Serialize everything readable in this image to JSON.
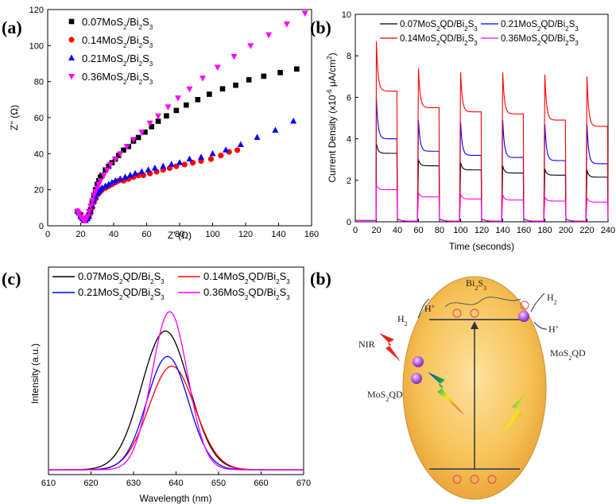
{
  "panel_labels": {
    "a": "(a)",
    "b1": "(b)",
    "c": "(c)",
    "b2": "(b)"
  },
  "chart_data": [
    {
      "type": "scatter",
      "xlabel": "Z' (Ω)",
      "ylabel": "Z'' (Ω)",
      "xlim": [
        0,
        160
      ],
      "ylim": [
        0,
        120
      ],
      "xticks": [
        0,
        20,
        40,
        60,
        80,
        100,
        120,
        140,
        160
      ],
      "yticks": [
        0,
        20,
        40,
        60,
        80,
        100,
        120
      ],
      "legend": "top-left",
      "series": [
        {
          "name": "0.07MoS2/Bi2S3",
          "marker": "square",
          "color": "#000000",
          "x": [
            18,
            20,
            21,
            22,
            23,
            24,
            25,
            26,
            27,
            28,
            29,
            30,
            31,
            32,
            33,
            35,
            37,
            39,
            41,
            43,
            46,
            49,
            52,
            55,
            59,
            63,
            67,
            72,
            78,
            84,
            91,
            98,
            106,
            114,
            122,
            131,
            141,
            151
          ],
          "y": [
            8,
            6,
            4,
            3,
            3,
            4,
            6,
            9,
            13,
            17,
            20,
            23,
            25,
            27,
            28,
            31,
            33,
            35,
            37,
            39,
            42,
            44,
            47,
            49,
            52,
            55,
            58,
            61,
            64,
            67,
            70,
            73,
            76,
            78,
            81,
            83,
            85,
            87
          ]
        },
        {
          "name": "0.14MoS2/Bi2S3",
          "marker": "circle",
          "color": "#ff0000",
          "x": [
            18,
            19,
            20,
            21,
            22,
            23,
            24,
            25,
            26,
            27,
            28,
            29,
            30,
            31,
            32,
            33,
            35,
            37,
            39,
            41,
            43,
            46,
            49,
            52,
            55,
            58,
            62,
            66,
            70,
            74,
            78,
            83,
            88,
            93,
            99,
            105,
            110,
            115
          ],
          "y": [
            8,
            7,
            5,
            4,
            3,
            3,
            4,
            5,
            7,
            10,
            13,
            15,
            17,
            18,
            19,
            20,
            21,
            22,
            23,
            24,
            25,
            25,
            26,
            27,
            28,
            28,
            29,
            30,
            31,
            32,
            33,
            34,
            35,
            36,
            37,
            39,
            41,
            42
          ]
        },
        {
          "name": "0.21MoS2/Bi2S3",
          "marker": "triangle-up",
          "color": "#0000ff",
          "x": [
            18,
            19,
            20,
            21,
            22,
            23,
            24,
            25,
            26,
            27,
            28,
            29,
            30,
            31,
            32,
            33,
            35,
            37,
            39,
            41,
            44,
            47,
            50,
            53,
            57,
            61,
            65,
            70,
            75,
            80,
            86,
            93,
            100,
            108,
            117,
            127,
            138,
            149
          ],
          "y": [
            8,
            7,
            5,
            4,
            3,
            3,
            4,
            5,
            8,
            11,
            14,
            16,
            18,
            19,
            20,
            21,
            22,
            23,
            24,
            25,
            26,
            27,
            28,
            29,
            30,
            31,
            32,
            33,
            34,
            35,
            37,
            38,
            40,
            42,
            45,
            49,
            53,
            58
          ]
        },
        {
          "name": "0.36MoS2/Bi2S3",
          "marker": "triangle-down",
          "color": "#ff00ff",
          "x": [
            18,
            19,
            20,
            21,
            22,
            23,
            24,
            25,
            26,
            27,
            28,
            29,
            30,
            31,
            32,
            34,
            36,
            38,
            41,
            44,
            48,
            52,
            57,
            62,
            67,
            73,
            79,
            86,
            94,
            103,
            113,
            123,
            134,
            145,
            156
          ],
          "y": [
            8,
            7,
            5,
            4,
            3,
            3,
            5,
            8,
            11,
            14,
            17,
            19,
            21,
            23,
            25,
            28,
            31,
            34,
            37,
            40,
            44,
            48,
            52,
            57,
            61,
            66,
            71,
            76,
            82,
            88,
            94,
            100,
            106,
            112,
            118
          ]
        }
      ]
    },
    {
      "type": "line",
      "xlabel": "Time (seconds)",
      "ylabel_parts": [
        "Current Density (x10",
        "-6",
        " μA/cm",
        "2",
        ")"
      ],
      "xlim": [
        0,
        240
      ],
      "ylim": [
        0,
        10
      ],
      "xticks": [
        0,
        20,
        40,
        60,
        80,
        100,
        120,
        140,
        160,
        180,
        200,
        220,
        240
      ],
      "yticks": [
        0,
        2,
        4,
        6,
        8,
        10
      ],
      "legend": "top",
      "on_intervals": [
        [
          20,
          40
        ],
        [
          60,
          80
        ],
        [
          100,
          120
        ],
        [
          140,
          160
        ],
        [
          180,
          200
        ],
        [
          220,
          240
        ]
      ],
      "series": [
        {
          "name": "0.07MoS2QD/Bi2S3",
          "color": "#000000",
          "peaks": [
            3.8,
            3.0,
            2.85,
            2.7,
            2.55,
            2.5
          ],
          "plateaus": [
            3.3,
            2.7,
            2.5,
            2.35,
            2.25,
            2.15
          ]
        },
        {
          "name": "0.21MoS2QD/Bi2S3",
          "color": "#0000ff",
          "peaks": [
            6.0,
            4.9,
            4.8,
            4.9,
            4.7,
            4.7
          ],
          "plateaus": [
            4.0,
            3.4,
            3.2,
            3.1,
            2.95,
            2.8
          ]
        },
        {
          "name": "0.14MoS2QD/Bi2S3",
          "color": "#ff0000",
          "peaks": [
            8.7,
            7.4,
            7.2,
            7.2,
            7.1,
            7.0
          ],
          "plateaus": [
            6.3,
            5.5,
            5.3,
            5.2,
            4.9,
            4.6
          ]
        },
        {
          "name": "0.36MoS2QD/Bi2S3",
          "color": "#ff00ff",
          "peaks": [
            1.8,
            1.4,
            1.35,
            1.3,
            1.2,
            1.15
          ],
          "plateaus": [
            1.55,
            1.2,
            1.1,
            1.05,
            1.0,
            0.95
          ]
        }
      ]
    },
    {
      "type": "line",
      "xlabel": "Wavelength (nm)",
      "ylabel": "Intensity (a.u.)",
      "xlim": [
        610,
        670
      ],
      "ylim": [
        0,
        1
      ],
      "xticks": [
        610,
        620,
        630,
        640,
        650,
        660,
        670
      ],
      "legend": "top",
      "series": [
        {
          "name": "0.07MoS2QD/Bi2S3",
          "color": "#000000",
          "center": 637.5,
          "sigma": 5.6,
          "amp": 0.79
        },
        {
          "name": "0.14MoS2QD/Bi2S3",
          "color": "#ff0000",
          "center": 639.0,
          "sigma": 5.4,
          "amp": 0.59
        },
        {
          "name": "0.21MoS2QD/Bi2S3",
          "color": "#0000ff",
          "center": 638.0,
          "sigma": 4.9,
          "amp": 0.645
        },
        {
          "name": "0.36MoS2QD/Bi2S3",
          "color": "#ff00ff",
          "center": 638.5,
          "sigma": 4.2,
          "amp": 0.9
        }
      ]
    }
  ],
  "schematic": {
    "material": "Bi2S3",
    "h_plus_top": "H+",
    "h2_left": "H2",
    "h2_right": "H2",
    "h_plus_right": "H+",
    "nir": "NIR",
    "qd_left": "MoS2QD",
    "qd_right": "MoS2QD"
  }
}
